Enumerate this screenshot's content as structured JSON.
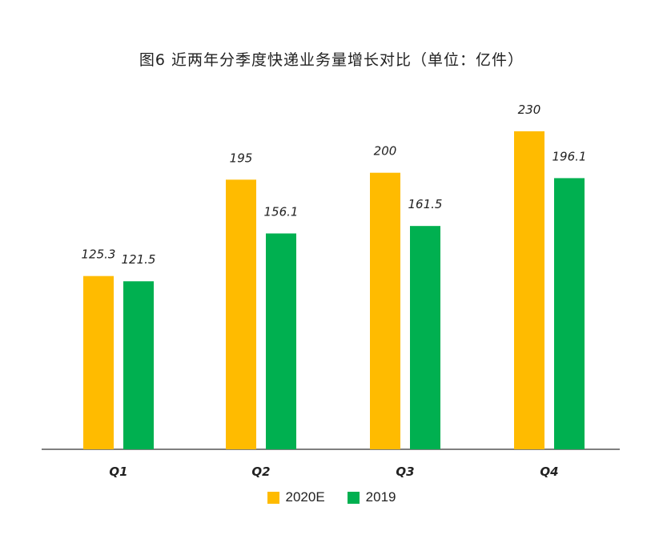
{
  "chart_data": {
    "type": "bar",
    "title": "图6 近两年分季度快递业务量增长对比（单位：亿件）",
    "categories": [
      "Q1",
      "Q2",
      "Q3",
      "Q4"
    ],
    "series": [
      {
        "name": "2020E",
        "color": "#FFBB00",
        "values": [
          125.3,
          195,
          200,
          230
        ],
        "labels": [
          "125.3",
          "195",
          "200",
          "230"
        ]
      },
      {
        "name": "2019",
        "color": "#00B050",
        "values": [
          121.5,
          156.1,
          161.5,
          196.1
        ],
        "labels": [
          "121.5",
          "156.1",
          "161.5",
          "196.1"
        ]
      }
    ],
    "xlabel": "",
    "ylabel": "",
    "ylim": [
      0,
      245
    ],
    "grid": false,
    "legend_position": "bottom"
  }
}
